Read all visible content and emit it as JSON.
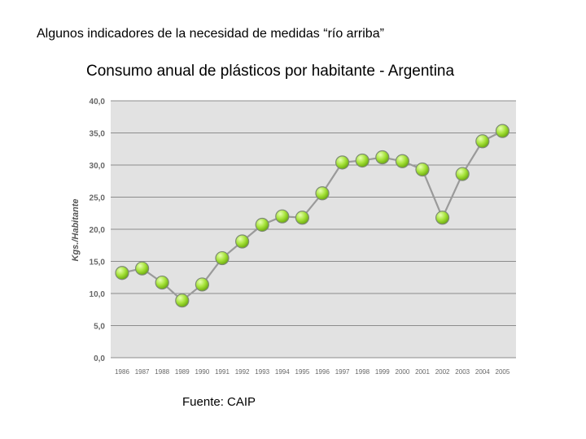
{
  "slide": {
    "heading": "Algunos indicadores de la necesidad de medidas “río arriba”",
    "source": "Fuente: CAIP"
  },
  "chart_data": {
    "type": "line",
    "title": "Consumo anual de plásticos por habitante - Argentina",
    "xlabel": "",
    "ylabel": "Kgs./Habitante",
    "categories": [
      "1986",
      "1987",
      "1988",
      "1989",
      "1990",
      "1991",
      "1992",
      "1993",
      "1994",
      "1995",
      "1996",
      "1997",
      "1998",
      "1999",
      "2000",
      "2001",
      "2002",
      "2003",
      "2004",
      "2005"
    ],
    "series": [
      {
        "values": [
          13.2,
          13.9,
          11.7,
          8.9,
          11.4,
          15.5,
          18.1,
          20.7,
          22.0,
          21.8,
          25.6,
          30.4,
          30.7,
          31.2,
          30.6,
          29.3,
          21.8,
          28.6,
          33.7,
          35.3
        ]
      }
    ],
    "ylim": [
      0,
      40
    ],
    "yticks": [
      "0,0",
      "5,0",
      "10,0",
      "15,0",
      "20,0",
      "25,0",
      "30,0",
      "35,0",
      "40,0"
    ],
    "grid": true,
    "colors": {
      "plot_bg": "#e2e2e2",
      "grid": "#8c8c8c",
      "line": "#9a9a9a",
      "marker": "#8fd61c",
      "marker_highlight": "#e6ffb0"
    }
  }
}
